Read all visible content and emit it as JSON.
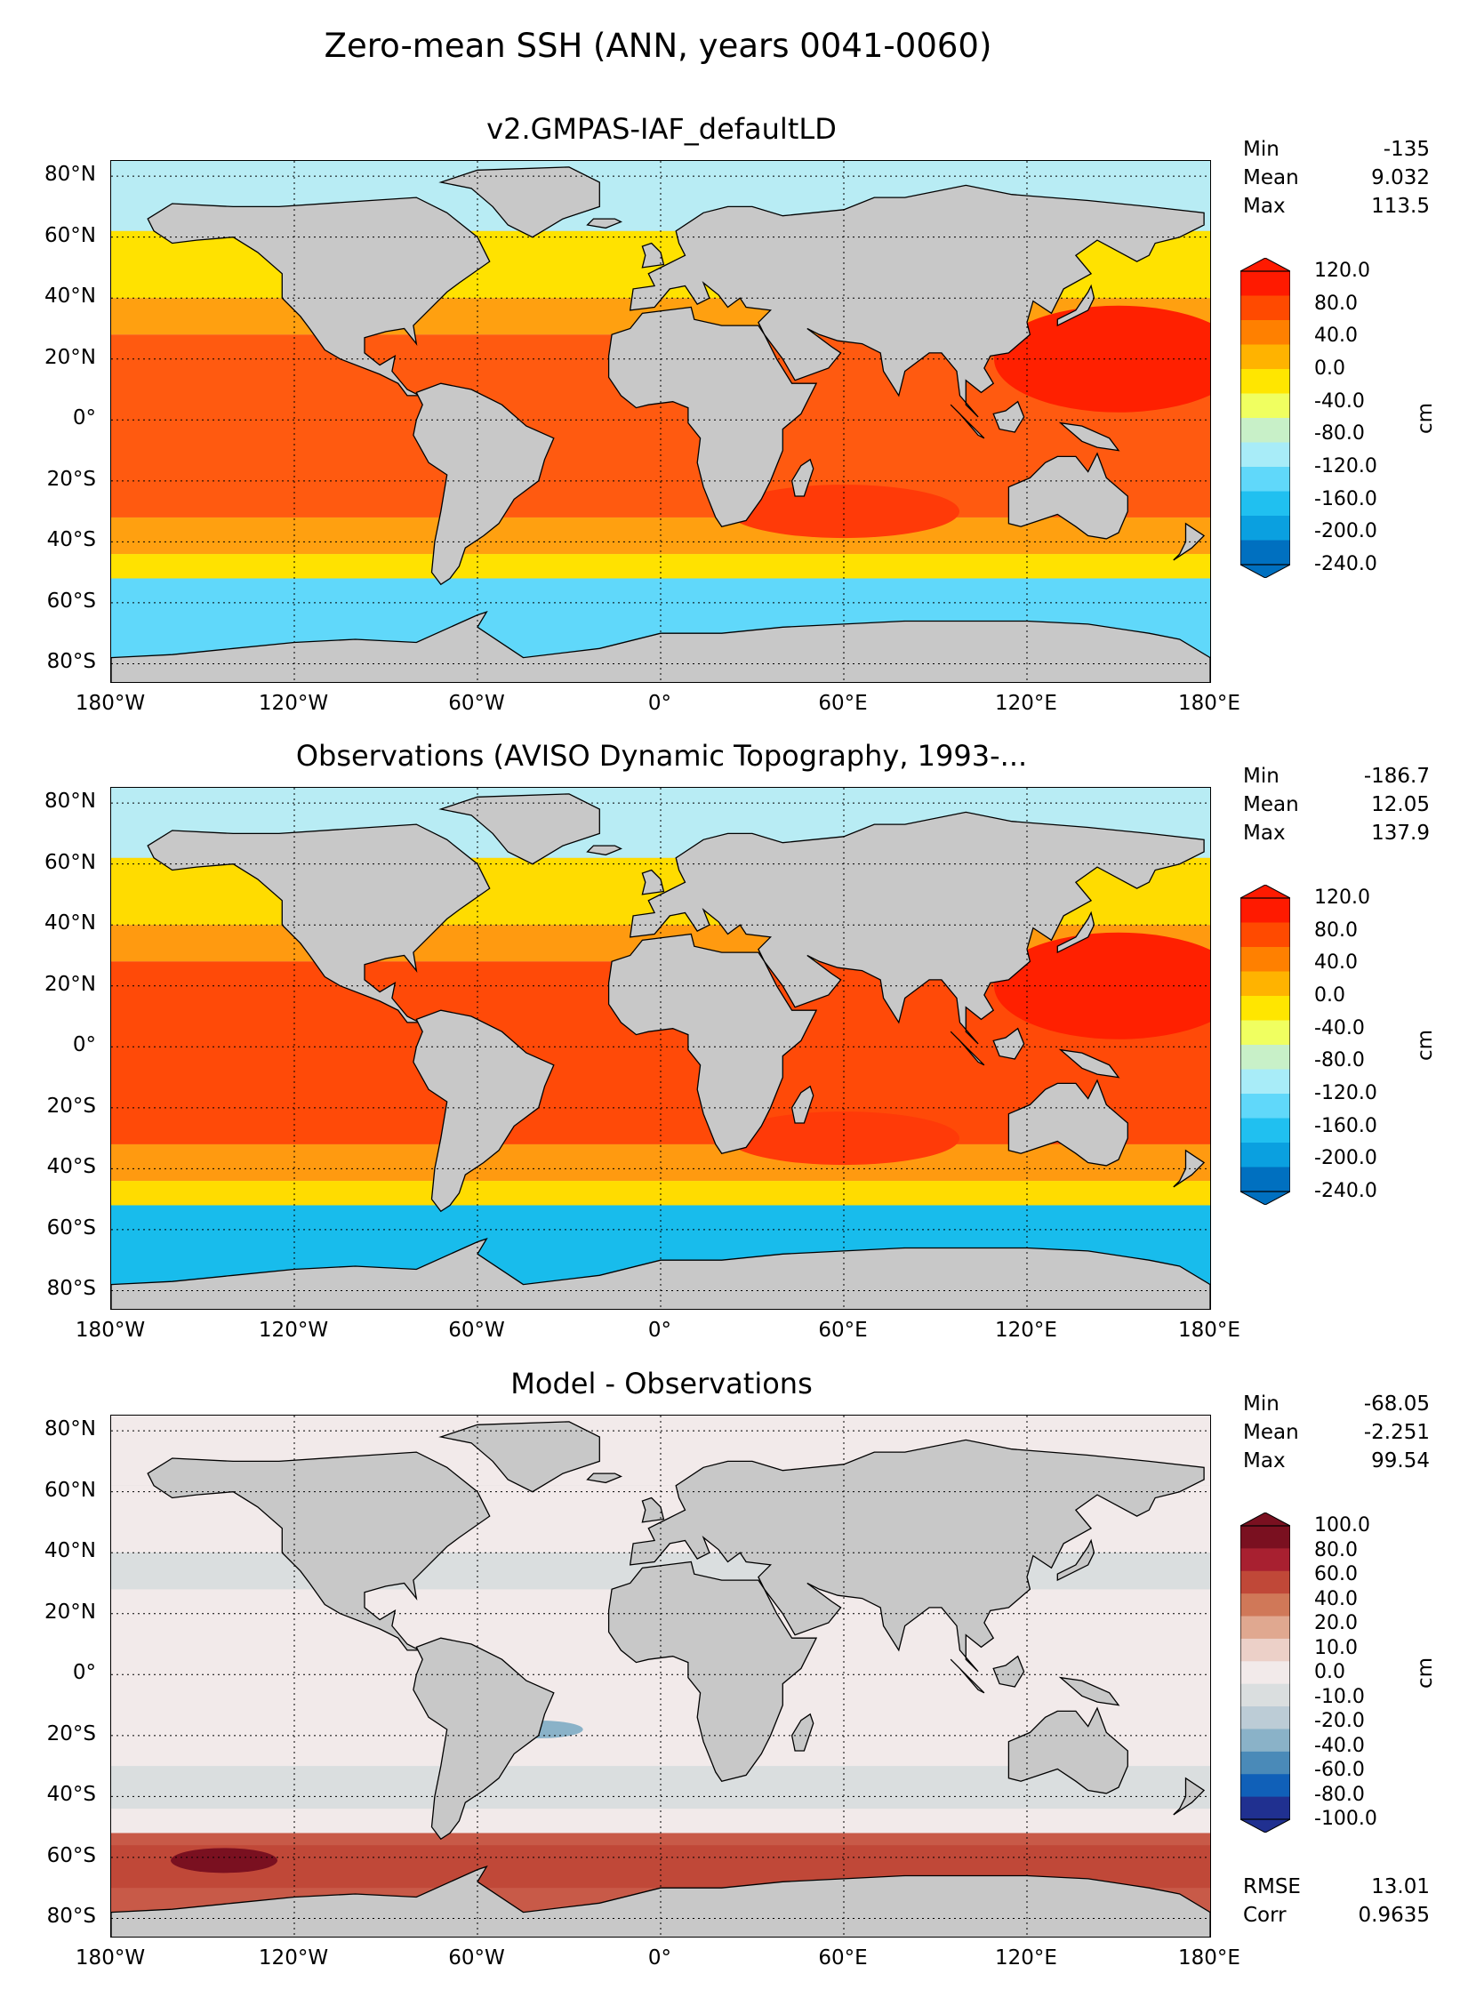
{
  "figure": {
    "title": "Zero-mean SSH (ANN, years 0041-0060)",
    "lat_labels": [
      "80°N",
      "60°N",
      "40°N",
      "20°N",
      "0°",
      "20°S",
      "40°S",
      "60°S",
      "80°S"
    ],
    "lon_labels": [
      "180°W",
      "120°W",
      "60°W",
      "0°",
      "60°E",
      "120°E",
      "180°E"
    ]
  },
  "panels": [
    {
      "title": "v2.GMPAS-IAF_defaultLD",
      "stats": [
        {
          "label": "Min",
          "value": "-135"
        },
        {
          "label": "Mean",
          "value": "9.032"
        },
        {
          "label": "Max",
          "value": "113.5"
        }
      ],
      "colorbar": {
        "units": "cm",
        "ticks": [
          "120.0",
          "80.0",
          "40.0",
          "0.0",
          "-40.0",
          "-80.0",
          "-120.0",
          "-160.0",
          "-200.0",
          "-240.0"
        ],
        "colors": [
          "#ff1a00",
          "#ff4a00",
          "#ff8000",
          "#ffb300",
          "#ffe600",
          "#f0ff60",
          "#c8f0c8",
          "#a8ecf8",
          "#60d8fa",
          "#20c0f0",
          "#0aa0e0",
          "#0070c0"
        ]
      },
      "map_colors": {
        "land": "#c8c8c8",
        "tropics": "#ff5a10",
        "subtropics": "#ffa010",
        "midlat": "#ffe200",
        "arctic": "#b8ecf4",
        "acc": "#60d8fa",
        "coast": "#000000"
      }
    },
    {
      "title": "Observations (AVISO Dynamic Topography, 1993-...",
      "stats": [
        {
          "label": "Min",
          "value": "-186.7"
        },
        {
          "label": "Mean",
          "value": "12.05"
        },
        {
          "label": "Max",
          "value": "137.9"
        }
      ],
      "colorbar": {
        "units": "cm",
        "ticks": [
          "120.0",
          "80.0",
          "40.0",
          "0.0",
          "-40.0",
          "-80.0",
          "-120.0",
          "-160.0",
          "-200.0",
          "-240.0"
        ],
        "colors": [
          "#ff1a00",
          "#ff4a00",
          "#ff8000",
          "#ffb300",
          "#ffe600",
          "#f0ff60",
          "#c8f0c8",
          "#a8ecf8",
          "#60d8fa",
          "#20c0f0",
          "#0aa0e0",
          "#0070c0"
        ]
      },
      "map_colors": {
        "land": "#c8c8c8",
        "tropics": "#ff4a08",
        "subtropics": "#ff9a10",
        "midlat": "#ffdc00",
        "arctic": "#b8ecf4",
        "acc": "#18bcec",
        "coast": "#000000"
      }
    },
    {
      "title": "Model - Observations",
      "stats": [
        {
          "label": "Min",
          "value": "-68.05"
        },
        {
          "label": "Mean",
          "value": "-2.251"
        },
        {
          "label": "Max",
          "value": "99.54"
        }
      ],
      "extra_stats": [
        {
          "label": "RMSE",
          "value": "13.01"
        },
        {
          "label": "Corr",
          "value": "0.9635"
        }
      ],
      "colorbar": {
        "units": "cm",
        "ticks": [
          "100.0",
          "80.0",
          "60.0",
          "40.0",
          "20.0",
          "10.0",
          "0.0",
          "-10.0",
          "-20.0",
          "-40.0",
          "-60.0",
          "-80.0",
          "-100.0"
        ],
        "colors": [
          "#7a1020",
          "#a82030",
          "#c04838",
          "#d07858",
          "#e0a890",
          "#ecd0c8",
          "#f2eaea",
          "#dadedf",
          "#bcccd6",
          "#8ab2c8",
          "#4a8ab8",
          "#1060b8",
          "#203090"
        ]
      },
      "map_colors": {
        "land": "#c8c8c8",
        "tropics": "#f2eaea",
        "subtropics": "#dadedf",
        "midlat": "#f2eaea",
        "arctic": "#f2eaea",
        "acc": "#c85a48",
        "coast": "#000000"
      }
    }
  ]
}
